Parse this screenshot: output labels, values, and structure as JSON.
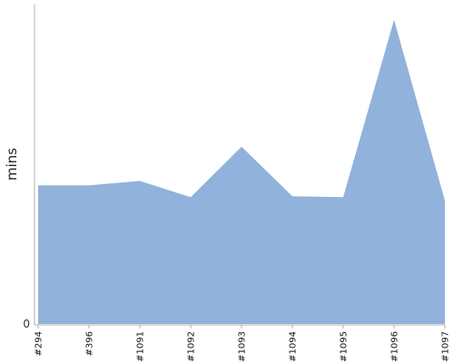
{
  "chart_data": {
    "type": "area",
    "categories": [
      "#294",
      "#396",
      "#1091",
      "#1092",
      "#1093",
      "#1094",
      "#1095",
      "#1096",
      "#1097"
    ],
    "values": [
      154,
      154,
      159,
      141,
      197,
      142,
      141,
      338,
      137
    ],
    "title": "",
    "xlabel": "",
    "ylabel": "mins",
    "y_ticks": [
      "0"
    ],
    "ylim": [
      0,
      355
    ],
    "grid": false,
    "legend": "none",
    "fill_color": "#91b2da",
    "axis_color": "#b0b0b0"
  }
}
